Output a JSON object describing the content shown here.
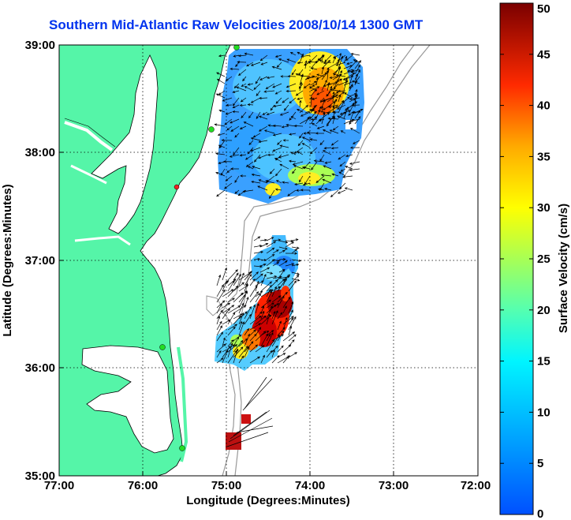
{
  "title": "Southern Mid-Atlantic Raw Velocities 2008/10/14 1300 GMT",
  "xlabel": "Longitude (Degrees:Minutes)",
  "ylabel": "Latitude (Degrees:Minutes)",
  "colorbar": {
    "label": "Surface Velocity (cm/s)",
    "ticks": [
      "0",
      "5",
      "10",
      "15",
      "20",
      "25",
      "30",
      "35",
      "40",
      "45",
      "50"
    ],
    "range": [
      0,
      50
    ],
    "colormap": "jet"
  },
  "x_ticks": [
    "77:00",
    "76:00",
    "75:00",
    "74:00",
    "73:00",
    "72:00"
  ],
  "y_ticks": [
    "35:00",
    "36:00",
    "37:00",
    "38:00",
    "39:00"
  ],
  "colors": {
    "land": "#55f5a8",
    "water": "#ffffff",
    "coast": "#000000",
    "bathymetry": "#999999",
    "grid": "#000000",
    "title": "#0033ee",
    "station_green": "#22dd22",
    "station_red": "#ee2222"
  }
}
